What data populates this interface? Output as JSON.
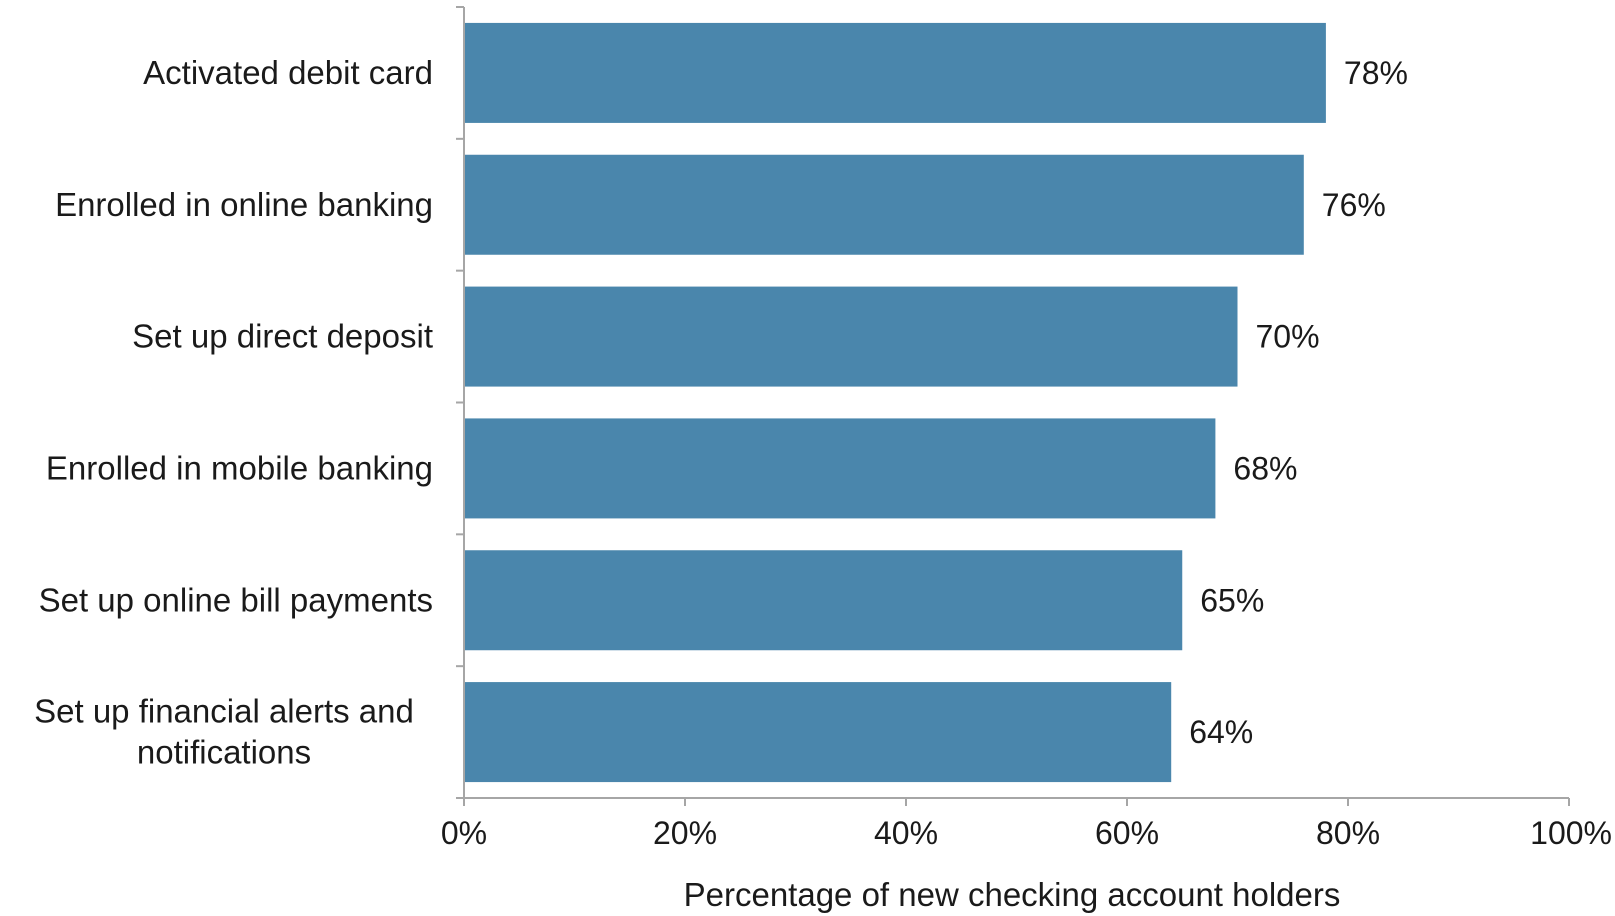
{
  "chart_data": {
    "type": "bar",
    "orientation": "horizontal",
    "categories": [
      "Activated debit card",
      "Enrolled in online banking",
      "Set up direct deposit",
      "Enrolled in mobile banking",
      "Set up online bill payments",
      "Set up financial alerts and notifications"
    ],
    "category_label_lines": [
      [
        "Activated debit card"
      ],
      [
        "Enrolled in online banking"
      ],
      [
        "Set up direct deposit"
      ],
      [
        "Enrolled in mobile banking"
      ],
      [
        "Set up online bill payments"
      ],
      [
        "Set up financial alerts and",
        "notifications"
      ]
    ],
    "values": [
      78,
      76,
      70,
      68,
      65,
      64
    ],
    "data_labels": [
      "78%",
      "76%",
      "70%",
      "68%",
      "65%",
      "64%"
    ],
    "xlim": [
      0,
      100
    ],
    "x_ticks": [
      0,
      20,
      40,
      60,
      80,
      100
    ],
    "x_tick_labels": [
      "0%",
      "20%",
      "40%",
      "60%",
      "80%",
      "100%"
    ],
    "xlabel": "Percentage of new checking account holders",
    "ylabel": "",
    "title": "",
    "grid": false,
    "legend": "none",
    "bar_color": "#4a86ac",
    "axis_color": "#a6a6a6"
  }
}
